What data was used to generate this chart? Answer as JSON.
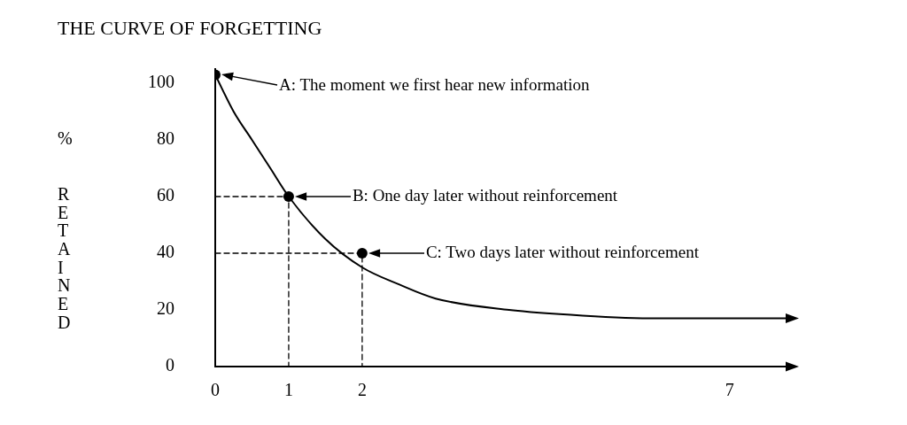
{
  "chart_data": {
    "type": "line",
    "title": "THE CURVE OF FORGETTING",
    "ylabel": "% RETAINED",
    "xlim": [
      0,
      7.8
    ],
    "xticks": [
      0,
      1,
      2,
      7
    ],
    "ylim": [
      0,
      105
    ],
    "yticks": [
      0,
      20,
      40,
      60,
      80,
      100
    ],
    "grid": false,
    "legend": false,
    "series": [
      {
        "type": "line",
        "color": "#000000",
        "marker": "none",
        "line_style": "solid",
        "x": [
          0,
          0.25,
          0.5,
          0.75,
          1,
          1.5,
          2,
          2.5,
          3,
          4,
          5,
          6,
          7,
          7.8
        ],
        "values": [
          103,
          90,
          80,
          70,
          60,
          45,
          35,
          29,
          24,
          20,
          18,
          17,
          17,
          17
        ]
      },
      {
        "type": "line",
        "color": "#000000",
        "marker": "none",
        "line_style": "dashed",
        "x": [
          0,
          1,
          1
        ],
        "values": [
          60,
          60,
          0
        ]
      },
      {
        "type": "line",
        "color": "#000000",
        "marker": "none",
        "line_style": "dashed",
        "x": [
          0,
          2,
          2
        ],
        "values": [
          40,
          40,
          0
        ]
      },
      {
        "type": "scatter",
        "color": "#000000",
        "marker": "circle",
        "x": [
          0,
          1,
          2
        ],
        "values": [
          103,
          60,
          40
        ]
      }
    ],
    "annotations": [
      "A: The moment we first hear new information",
      "B: One day later without reinforcement",
      "C: Two days later without reinforcement"
    ]
  }
}
